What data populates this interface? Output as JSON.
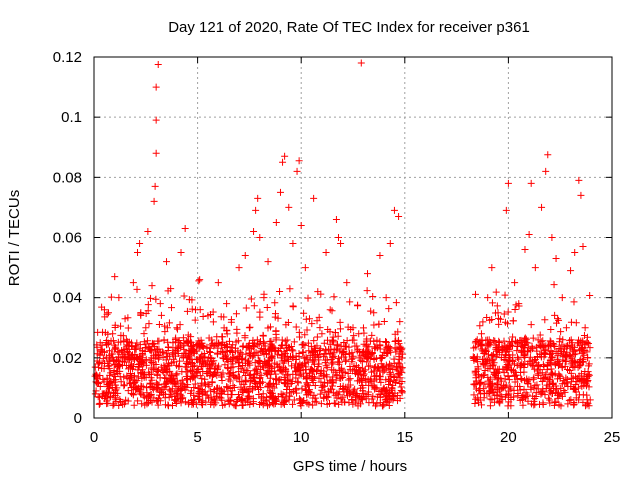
{
  "chart_data": {
    "type": "scatter",
    "title": "Day 121 of 2020, Rate Of TEC Index for receiver p361",
    "xlabel": "GPS time / hours",
    "ylabel": "ROTI / TECUs",
    "xlim": [
      0,
      25
    ],
    "ylim": [
      0,
      0.12
    ],
    "x_ticks": [
      0,
      5,
      10,
      15,
      20,
      25
    ],
    "x_tick_labels": [
      "0",
      "5",
      "10",
      "15",
      "20",
      "25"
    ],
    "y_ticks": [
      0,
      0.02,
      0.04,
      0.06,
      0.08,
      0.1,
      0.12
    ],
    "y_tick_labels": [
      "0",
      "0.02",
      "0.04",
      "0.06",
      "0.08",
      "0.1",
      "0.12"
    ],
    "grid": true,
    "marker": "+",
    "color": "#ff0000",
    "data_gap_hours": [
      14.9,
      18.3
    ],
    "series": [
      {
        "points": [
          [
            0.1,
            0.012
          ],
          [
            0.2,
            0.018
          ],
          [
            0.3,
            0.025
          ],
          [
            0.4,
            0.008
          ],
          [
            0.5,
            0.022
          ],
          [
            0.7,
            0.035
          ],
          [
            0.8,
            0.015
          ],
          [
            0.9,
            0.028
          ],
          [
            1.0,
            0.047
          ],
          [
            1.1,
            0.01
          ],
          [
            1.2,
            0.04
          ],
          [
            1.3,
            0.02
          ],
          [
            1.5,
            0.033
          ],
          [
            1.7,
            0.013
          ],
          [
            1.9,
            0.045
          ],
          [
            2.0,
            0.024
          ],
          [
            2.1,
            0.055
          ],
          [
            2.2,
            0.058
          ],
          [
            2.4,
            0.018
          ],
          [
            2.5,
            0.03
          ],
          [
            2.6,
            0.062
          ],
          [
            2.8,
            0.044
          ],
          [
            2.9,
            0.072
          ],
          [
            2.95,
            0.077
          ],
          [
            3.0,
            0.088
          ],
          [
            3.0,
            0.099
          ],
          [
            3.0,
            0.11
          ],
          [
            3.1,
            0.1175
          ],
          [
            3.2,
            0.038
          ],
          [
            3.3,
            0.022
          ],
          [
            3.5,
            0.052
          ],
          [
            3.7,
            0.043
          ],
          [
            3.8,
            0.014
          ],
          [
            4.0,
            0.03
          ],
          [
            4.2,
            0.055
          ],
          [
            4.4,
            0.063
          ],
          [
            4.5,
            0.025
          ],
          [
            4.7,
            0.009
          ],
          [
            4.9,
            0.036
          ],
          [
            5.1,
            0.046
          ],
          [
            5.3,
            0.02
          ],
          [
            5.5,
            0.034
          ],
          [
            5.7,
            0.012
          ],
          [
            6.0,
            0.045
          ],
          [
            6.2,
            0.027
          ],
          [
            6.4,
            0.038
          ],
          [
            6.7,
            0.018
          ],
          [
            7.0,
            0.05
          ],
          [
            7.3,
            0.054
          ],
          [
            7.5,
            0.03
          ],
          [
            7.7,
            0.062
          ],
          [
            7.8,
            0.069
          ],
          [
            7.9,
            0.073
          ],
          [
            8.0,
            0.06
          ],
          [
            8.2,
            0.04
          ],
          [
            8.4,
            0.052
          ],
          [
            8.6,
            0.024
          ],
          [
            8.8,
            0.065
          ],
          [
            9.0,
            0.075
          ],
          [
            9.1,
            0.085
          ],
          [
            9.2,
            0.087
          ],
          [
            9.4,
            0.07
          ],
          [
            9.6,
            0.058
          ],
          [
            9.8,
            0.082
          ],
          [
            9.9,
            0.0855
          ],
          [
            10.0,
            0.064
          ],
          [
            10.2,
            0.05
          ],
          [
            10.4,
            0.033
          ],
          [
            10.6,
            0.073
          ],
          [
            10.8,
            0.042
          ],
          [
            11.0,
            0.028
          ],
          [
            11.2,
            0.055
          ],
          [
            11.4,
            0.036
          ],
          [
            11.7,
            0.066
          ],
          [
            11.8,
            0.06
          ],
          [
            11.9,
            0.058
          ],
          [
            12.2,
            0.045
          ],
          [
            12.5,
            0.03
          ],
          [
            12.8,
            0.02
          ],
          [
            12.9,
            0.118
          ],
          [
            13.2,
            0.048
          ],
          [
            13.5,
            0.035
          ],
          [
            13.8,
            0.054
          ],
          [
            14.1,
            0.04
          ],
          [
            14.3,
            0.058
          ],
          [
            14.5,
            0.069
          ],
          [
            14.7,
            0.067
          ],
          [
            14.8,
            0.022
          ],
          [
            18.4,
            0.015
          ],
          [
            18.7,
            0.028
          ],
          [
            19.0,
            0.04
          ],
          [
            19.2,
            0.05
          ],
          [
            19.5,
            0.035
          ],
          [
            19.7,
            0.023
          ],
          [
            19.9,
            0.069
          ],
          [
            20.0,
            0.078
          ],
          [
            20.3,
            0.045
          ],
          [
            20.5,
            0.038
          ],
          [
            20.8,
            0.056
          ],
          [
            21.0,
            0.061
          ],
          [
            21.1,
            0.078
          ],
          [
            21.3,
            0.05
          ],
          [
            21.6,
            0.07
          ],
          [
            21.8,
            0.082
          ],
          [
            21.9,
            0.0875
          ],
          [
            22.1,
            0.06
          ],
          [
            22.3,
            0.053
          ],
          [
            22.6,
            0.04
          ],
          [
            22.8,
            0.03
          ],
          [
            23.0,
            0.049
          ],
          [
            23.2,
            0.055
          ],
          [
            23.4,
            0.079
          ],
          [
            23.5,
            0.074
          ],
          [
            23.6,
            0.057
          ],
          [
            23.8,
            0.025
          ],
          [
            23.9,
            0.018
          ]
        ]
      }
    ]
  }
}
